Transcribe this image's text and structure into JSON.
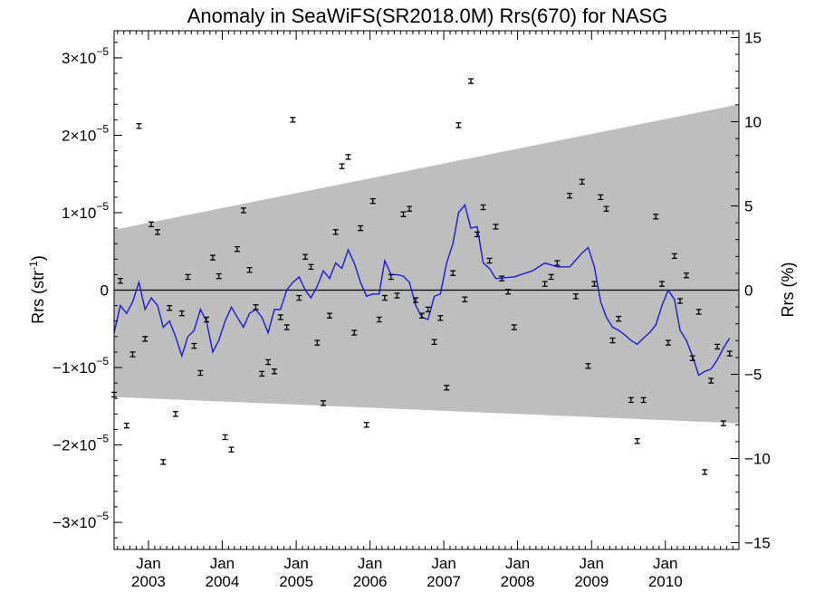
{
  "chart_data": {
    "type": "scatter",
    "title": "Anomaly in SeaWiFS(SR2018.0M) Rrs(670) for NASG",
    "ylabel_left": "Rrs (str",
    "ylabel_left_sup": "-1",
    "ylabel_left_end": ")",
    "ylabel_right": "Rrs (%)",
    "x_month_label": "Jan",
    "x_years": [
      "2003",
      "2004",
      "2005",
      "2006",
      "2007",
      "2008",
      "2009",
      "2010"
    ],
    "xlim": [
      "2002-07-15",
      "2010-12-31"
    ],
    "ylim_left": [
      -3.35e-05,
      3.35e-05
    ],
    "ylim_right": [
      -15.4,
      15.4
    ],
    "left_ticks": [
      {
        "value": -3e-05,
        "mantissa": "−3×10",
        "exp": "−5"
      },
      {
        "value": -2e-05,
        "mantissa": "−2×10",
        "exp": "−5"
      },
      {
        "value": -1e-05,
        "mantissa": "−1×10",
        "exp": "−5"
      },
      {
        "value": 0,
        "mantissa": "0",
        "exp": ""
      },
      {
        "value": 1e-05,
        "mantissa": "1×10",
        "exp": "−5"
      },
      {
        "value": 2e-05,
        "mantissa": "2×10",
        "exp": "−5"
      },
      {
        "value": 3e-05,
        "mantissa": "3×10",
        "exp": "−5"
      }
    ],
    "right_ticks": [
      {
        "value": -15,
        "label": "−15"
      },
      {
        "value": -10,
        "label": "−10"
      },
      {
        "value": -5,
        "label": "−5"
      },
      {
        "value": 0,
        "label": "0"
      },
      {
        "value": 5,
        "label": "5"
      },
      {
        "value": 10,
        "label": "10"
      },
      {
        "value": 15,
        "label": "15"
      }
    ],
    "band": {
      "upper": [
        [
          "2002-07-15",
          7.8e-06
        ],
        [
          "2010-12-31",
          2.4e-05
        ]
      ],
      "lower": [
        [
          "2002-07-15",
          -1.38e-05
        ],
        [
          "2010-12-31",
          -1.72e-05
        ]
      ],
      "color": "#bebebe"
    },
    "zero_line": true,
    "series": [
      {
        "kind": "points_with_error_bars",
        "color": "#000000",
        "error": 3e-07,
        "points": [
          [
            "2002-07-15",
            -1.35e-05
          ],
          [
            "2002-08-15",
            1.2e-06
          ],
          [
            "2002-09-15",
            -1.75e-05
          ],
          [
            "2002-10-15",
            -8.3e-06
          ],
          [
            "2002-11-15",
            2.12e-05
          ],
          [
            "2002-12-15",
            -6.3e-06
          ],
          [
            "2003-01-15",
            8.5e-06
          ],
          [
            "2003-02-15",
            7.5e-06
          ],
          [
            "2003-03-15",
            -2.22e-05
          ],
          [
            "2003-04-15",
            -2.3e-06
          ],
          [
            "2003-05-15",
            -1.6e-05
          ],
          [
            "2003-06-15",
            -3e-06
          ],
          [
            "2003-07-15",
            1.7e-06
          ],
          [
            "2003-08-15",
            -7.2e-06
          ],
          [
            "2003-09-15",
            -1.07e-05
          ],
          [
            "2003-10-15",
            -3.8e-06
          ],
          [
            "2003-11-15",
            4.2e-06
          ],
          [
            "2003-12-15",
            1.8e-06
          ],
          [
            "2004-01-15",
            -1.9e-05
          ],
          [
            "2004-02-15",
            -2.06e-05
          ],
          [
            "2004-03-15",
            5.3e-06
          ],
          [
            "2004-04-15",
            1.03e-05
          ],
          [
            "2004-05-15",
            2.6e-06
          ],
          [
            "2004-06-15",
            -2.2e-06
          ],
          [
            "2004-07-15",
            -1.08e-05
          ],
          [
            "2004-08-15",
            -9.3e-06
          ],
          [
            "2004-09-15",
            -1.05e-05
          ],
          [
            "2004-10-15",
            -3.5e-06
          ],
          [
            "2004-11-15",
            -4.8e-06
          ],
          [
            "2004-12-15",
            2.2e-05
          ],
          [
            "2005-01-15",
            -1e-06
          ],
          [
            "2005-02-15",
            4.3e-06
          ],
          [
            "2005-03-15",
            3e-06
          ],
          [
            "2005-04-15",
            -6.8e-06
          ],
          [
            "2005-05-15",
            -1.46e-05
          ],
          [
            "2005-06-15",
            -3.3e-06
          ],
          [
            "2005-07-15",
            7.5e-06
          ],
          [
            "2005-08-15",
            1.6e-05
          ],
          [
            "2005-09-15",
            1.72e-05
          ],
          [
            "2005-10-15",
            -5.5e-06
          ],
          [
            "2005-11-15",
            8e-06
          ],
          [
            "2005-12-15",
            -1.74e-05
          ],
          [
            "2006-01-15",
            1.15e-05
          ],
          [
            "2006-02-15",
            -3.8e-06
          ],
          [
            "2006-03-15",
            -1e-06
          ],
          [
            "2006-04-15",
            1.7e-06
          ],
          [
            "2006-05-15",
            -7e-07
          ],
          [
            "2006-06-15",
            9.8e-06
          ],
          [
            "2006-07-15",
            1.05e-05
          ],
          [
            "2006-08-15",
            -1.3e-06
          ],
          [
            "2006-09-15",
            -3.3e-06
          ],
          [
            "2006-10-15",
            -2.5e-06
          ],
          [
            "2006-11-15",
            -6.7e-06
          ],
          [
            "2006-12-15",
            -3.6e-06
          ],
          [
            "2007-01-15",
            -1.26e-05
          ],
          [
            "2007-02-15",
            2.2e-06
          ],
          [
            "2007-03-15",
            2.13e-05
          ],
          [
            "2007-04-15",
            -1.2e-06
          ],
          [
            "2007-05-15",
            2.7e-05
          ],
          [
            "2007-06-15",
            7.2e-06
          ],
          [
            "2007-07-15",
            1.07e-05
          ],
          [
            "2007-08-15",
            3.8e-06
          ],
          [
            "2007-09-15",
            8.2e-06
          ],
          [
            "2007-10-15",
            1.5e-06
          ],
          [
            "2007-11-15",
            -2e-07
          ],
          [
            "2007-12-15",
            -4.8e-06
          ],
          [
            "2008-05-15",
            8e-07
          ],
          [
            "2008-06-15",
            1.7e-06
          ],
          [
            "2008-07-15",
            3.5e-06
          ],
          [
            "2008-09-15",
            1.22e-05
          ],
          [
            "2008-10-15",
            -8e-07
          ],
          [
            "2008-11-15",
            1.4e-05
          ],
          [
            "2008-12-15",
            -9.8e-06
          ],
          [
            "2009-01-15",
            8e-07
          ],
          [
            "2009-02-15",
            1.2e-05
          ],
          [
            "2009-03-15",
            1.05e-05
          ],
          [
            "2009-04-15",
            -6.5e-06
          ],
          [
            "2009-05-15",
            -3.7e-06
          ],
          [
            "2009-07-15",
            -1.42e-05
          ],
          [
            "2009-08-15",
            -1.95e-05
          ],
          [
            "2009-09-15",
            -1.42e-05
          ],
          [
            "2009-11-15",
            9.5e-06
          ],
          [
            "2009-12-15",
            8e-07
          ],
          [
            "2010-01-15",
            -6.8e-06
          ],
          [
            "2010-02-15",
            4.4e-06
          ],
          [
            "2010-03-15",
            -1.4e-06
          ],
          [
            "2010-04-15",
            1.9e-06
          ],
          [
            "2010-05-15",
            -8.8e-06
          ],
          [
            "2010-06-15",
            -2.8e-06
          ],
          [
            "2010-07-15",
            -2.35e-05
          ],
          [
            "2010-08-15",
            -1.17e-05
          ],
          [
            "2010-09-15",
            -7.3e-06
          ],
          [
            "2010-10-15",
            -1.72e-05
          ],
          [
            "2010-11-15",
            -8.2e-06
          ]
        ]
      },
      {
        "kind": "line",
        "color": "#1a1ad6",
        "points": [
          [
            "2002-07-15",
            -5.5e-06
          ],
          [
            "2002-08-15",
            -2e-06
          ],
          [
            "2002-09-15",
            -3e-06
          ],
          [
            "2002-10-15",
            -1.5e-06
          ],
          [
            "2002-11-15",
            1e-06
          ],
          [
            "2002-12-15",
            -2.5e-06
          ],
          [
            "2003-01-15",
            -1e-06
          ],
          [
            "2003-02-15",
            -2e-06
          ],
          [
            "2003-03-15",
            -4.8e-06
          ],
          [
            "2003-04-15",
            -4e-06
          ],
          [
            "2003-05-15",
            -6e-06
          ],
          [
            "2003-06-15",
            -8.5e-06
          ],
          [
            "2003-07-15",
            -6e-06
          ],
          [
            "2003-08-15",
            -5.2e-06
          ],
          [
            "2003-09-15",
            -2.5e-06
          ],
          [
            "2003-10-15",
            -4e-06
          ],
          [
            "2003-11-15",
            -8e-06
          ],
          [
            "2003-12-15",
            -6.5e-06
          ],
          [
            "2004-01-15",
            -4e-06
          ],
          [
            "2004-02-15",
            -2.2e-06
          ],
          [
            "2004-03-15",
            -3.5e-06
          ],
          [
            "2004-04-15",
            -4.8e-06
          ],
          [
            "2004-05-15",
            -3e-06
          ],
          [
            "2004-06-15",
            -2.5e-06
          ],
          [
            "2004-07-15",
            -3.5e-06
          ],
          [
            "2004-08-15",
            -5.5e-06
          ],
          [
            "2004-09-15",
            -2.5e-06
          ],
          [
            "2004-10-15",
            -2.5e-06
          ],
          [
            "2004-11-15",
            0.0
          ],
          [
            "2004-12-15",
            1e-06
          ],
          [
            "2005-01-15",
            1.7e-06
          ],
          [
            "2005-02-15",
            0.0
          ],
          [
            "2005-03-15",
            -1e-06
          ],
          [
            "2005-04-15",
            5e-07
          ],
          [
            "2005-05-15",
            2.5e-06
          ],
          [
            "2005-06-15",
            1.5e-06
          ],
          [
            "2005-07-15",
            3.5e-06
          ],
          [
            "2005-08-15",
            2.8e-06
          ],
          [
            "2005-09-15",
            5.2e-06
          ],
          [
            "2005-10-15",
            3.5e-06
          ],
          [
            "2005-11-15",
            1e-06
          ],
          [
            "2005-12-15",
            -8e-07
          ],
          [
            "2006-01-15",
            -5e-07
          ],
          [
            "2006-02-15",
            -5e-07
          ],
          [
            "2006-03-15",
            3.8e-06
          ],
          [
            "2006-04-15",
            2e-06
          ],
          [
            "2006-05-15",
            2e-06
          ],
          [
            "2006-06-15",
            1.8e-06
          ],
          [
            "2006-07-15",
            1e-06
          ],
          [
            "2006-08-15",
            -2e-06
          ],
          [
            "2006-09-15",
            -3.5e-06
          ],
          [
            "2006-10-15",
            -3.8e-06
          ],
          [
            "2006-11-15",
            -8e-07
          ],
          [
            "2006-12-15",
            -5e-07
          ],
          [
            "2007-01-15",
            3.5e-06
          ],
          [
            "2007-02-15",
            6e-06
          ],
          [
            "2007-03-15",
            1e-05
          ],
          [
            "2007-04-15",
            1.1e-05
          ],
          [
            "2007-05-15",
            8e-06
          ],
          [
            "2007-06-15",
            8.2e-06
          ],
          [
            "2007-07-15",
            3.5e-06
          ],
          [
            "2007-08-15",
            2.8e-06
          ],
          [
            "2007-09-15",
            1.5e-06
          ],
          [
            "2007-12-15",
            1.7e-06
          ],
          [
            "2008-03-15",
            2.5e-06
          ],
          [
            "2008-05-15",
            3.5e-06
          ],
          [
            "2008-07-15",
            3e-06
          ],
          [
            "2008-09-15",
            3e-06
          ],
          [
            "2008-11-15",
            4.8e-06
          ],
          [
            "2008-12-15",
            5.5e-06
          ],
          [
            "2009-01-15",
            3e-06
          ],
          [
            "2009-02-15",
            -1.5e-06
          ],
          [
            "2009-03-15",
            -3.5e-06
          ],
          [
            "2009-04-15",
            -4.8e-06
          ],
          [
            "2009-05-15",
            -5.2e-06
          ],
          [
            "2009-06-15",
            -5.8e-06
          ],
          [
            "2009-07-15",
            -6.5e-06
          ],
          [
            "2009-08-15",
            -7e-06
          ],
          [
            "2009-09-15",
            -6.2e-06
          ],
          [
            "2009-10-15",
            -5.5e-06
          ],
          [
            "2009-11-15",
            -4.5e-06
          ],
          [
            "2009-12-15",
            -2e-06
          ],
          [
            "2010-01-15",
            0.0
          ],
          [
            "2010-02-15",
            -1.2e-06
          ],
          [
            "2010-03-15",
            -5.2e-06
          ],
          [
            "2010-04-15",
            -6.5e-06
          ],
          [
            "2010-05-15",
            -8.5e-06
          ],
          [
            "2010-06-15",
            -1.1e-05
          ],
          [
            "2010-07-15",
            -1.05e-05
          ],
          [
            "2010-08-15",
            -1.02e-05
          ],
          [
            "2010-09-15",
            -9e-06
          ],
          [
            "2010-10-15",
            -7.5e-06
          ],
          [
            "2010-11-15",
            -6.2e-06
          ]
        ]
      }
    ]
  }
}
